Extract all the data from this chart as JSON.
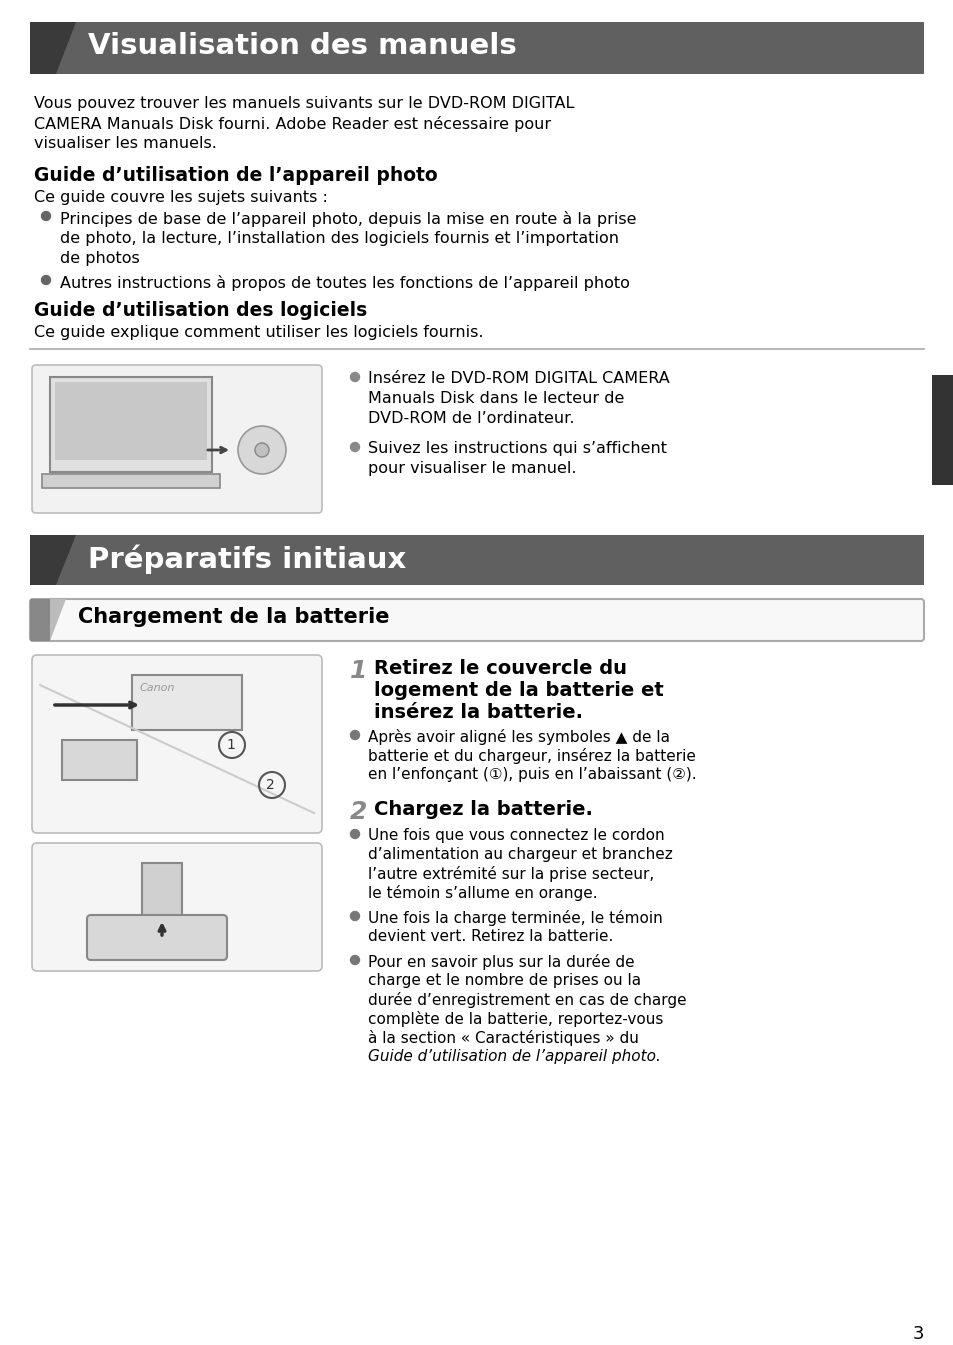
{
  "page_bg": "#ffffff",
  "header1_bg": "#606060",
  "header1_text": "Visualisation des manuels",
  "header1_text_color": "#ffffff",
  "header2_bg": "#606060",
  "header2_text": "Préparatifs initiaux",
  "header2_text_color": "#ffffff",
  "subheader_bg": "#f0f0f0",
  "subheader_border": "#aaaaaa",
  "subheader_text": "Chargement de la batterie",
  "subheader_text_color": "#000000",
  "body_text_color": "#000000",
  "bullet_color": "#666666",
  "side_tab_color": "#333333",
  "rule_color": "#aaaaaa",
  "page_number": "3",
  "figsize": [
    9.54,
    13.45
  ],
  "dpi": 100
}
